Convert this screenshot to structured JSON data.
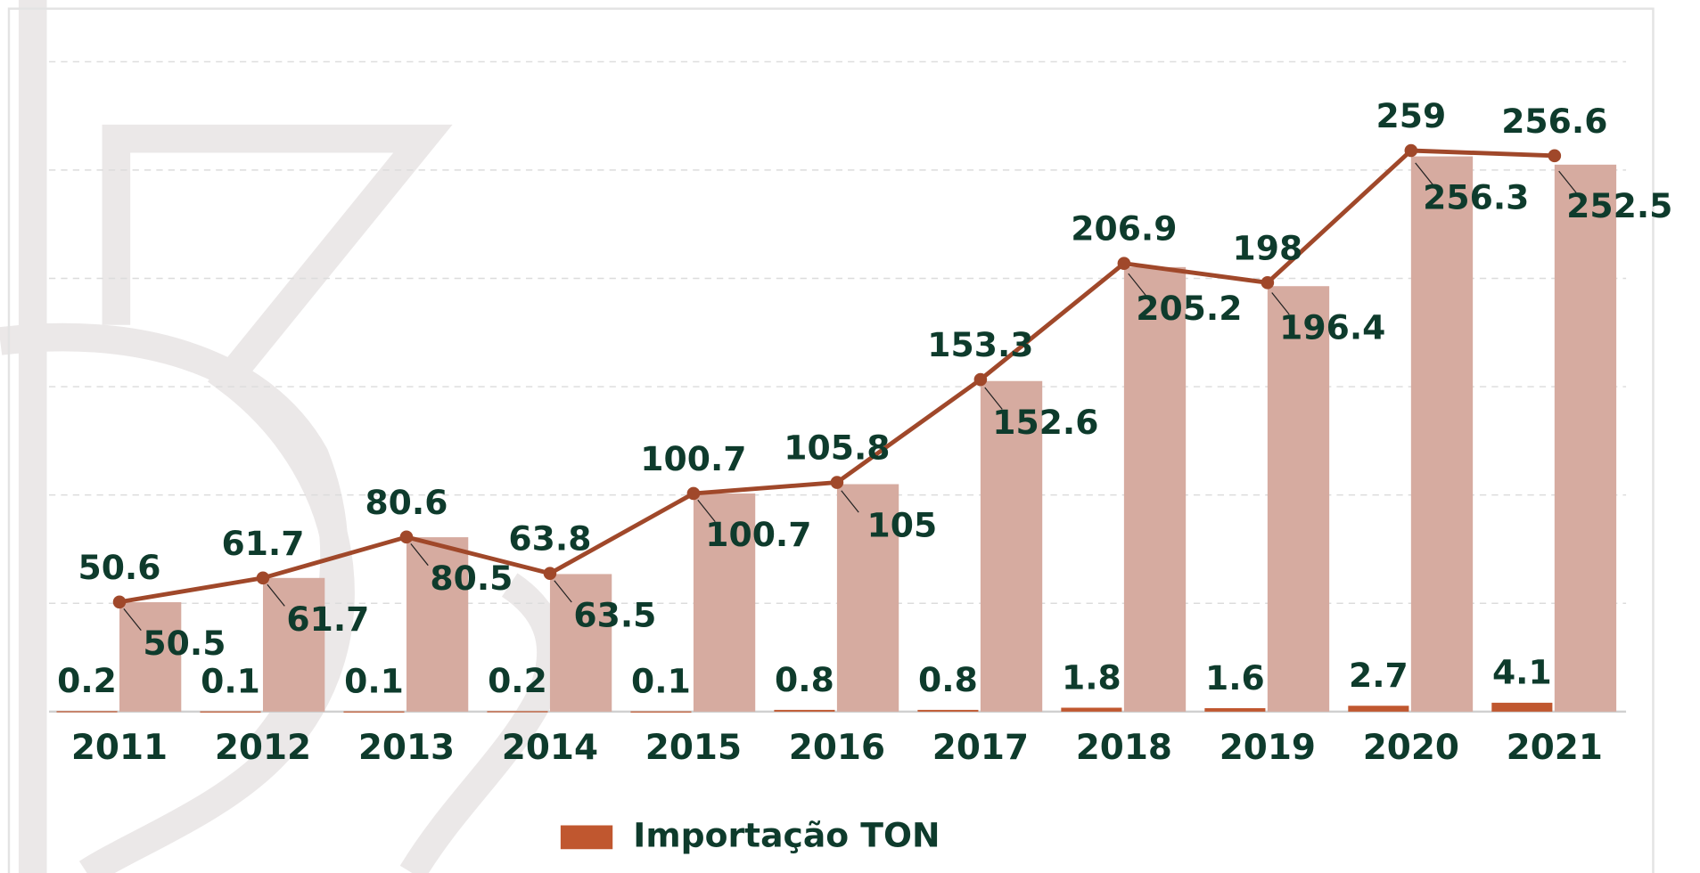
{
  "chart_data": {
    "type": "bar",
    "categories": [
      "2011",
      "2012",
      "2013",
      "2014",
      "2015",
      "2016",
      "2017",
      "2018",
      "2019",
      "2020",
      "2021"
    ],
    "series": [
      {
        "name": "Importação TON",
        "color": "#c0572f",
        "values": [
          0.2,
          0.1,
          0.1,
          0.2,
          0.1,
          0.8,
          0.8,
          1.8,
          1.6,
          2.7,
          4.1
        ]
      },
      {
        "color": "#d6aba0",
        "values": [
          50.5,
          61.7,
          80.5,
          63.5,
          100.7,
          105.0,
          152.6,
          205.2,
          196.4,
          256.3,
          252.5
        ]
      },
      {
        "type": "line",
        "color": "#a0482a",
        "values": [
          50.6,
          61.7,
          80.6,
          63.8,
          100.7,
          105.8,
          153.3,
          206.9,
          198.0,
          259.0,
          256.6
        ]
      }
    ],
    "ylim": [
      0,
      300
    ],
    "yticks": [
      0,
      50,
      100,
      150,
      200,
      250,
      300
    ],
    "grid": true,
    "legend": "bottom"
  }
}
